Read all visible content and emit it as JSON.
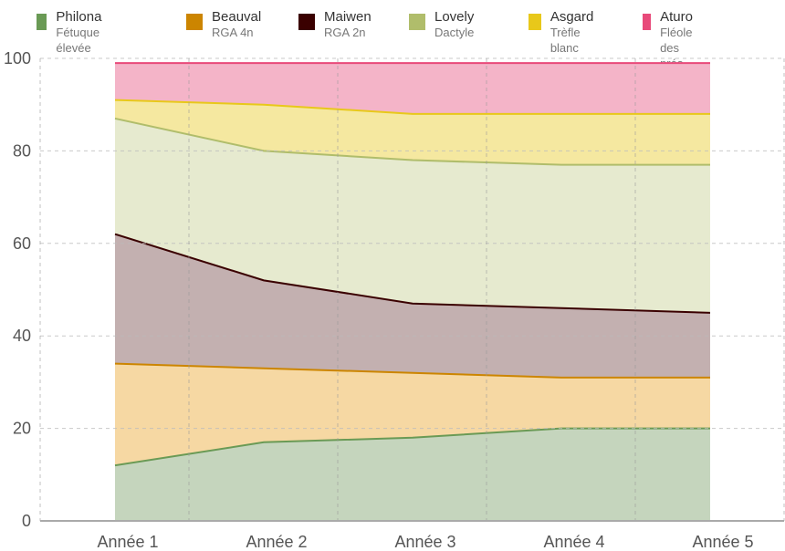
{
  "chart_data": {
    "type": "area",
    "stacked": true,
    "categories": [
      "Année 1",
      "Année 2",
      "Année 3",
      "Année 4",
      "Année 5"
    ],
    "series": [
      {
        "name": "Philona",
        "subtitle": "Fétuque élevée",
        "color": "#6a9a55",
        "fill": "#c5d5bd",
        "values": [
          12,
          17,
          18,
          20,
          20
        ]
      },
      {
        "name": "Beauval",
        "subtitle": "RGA 4n",
        "color": "#cc8500",
        "fill": "#f6d8a3",
        "values": [
          22,
          16,
          14,
          11,
          11
        ]
      },
      {
        "name": "Maiwen",
        "subtitle": "RGA 2n",
        "color": "#3a0000",
        "fill": "#c3b0b0",
        "values": [
          28,
          19,
          15,
          15,
          14
        ]
      },
      {
        "name": "Lovely",
        "subtitle": "Dactyle",
        "color": "#b0bd6b",
        "fill": "#e6eacf",
        "values": [
          25,
          28,
          31,
          31,
          32
        ]
      },
      {
        "name": "Asgard",
        "subtitle": "Trèfle blanc",
        "color": "#e8c81a",
        "fill": "#f5e8a0",
        "values": [
          4,
          10,
          10,
          11,
          11
        ]
      },
      {
        "name": "Aturo",
        "subtitle": "Fléole des prés",
        "color": "#e84a7a",
        "fill": "#f4b4c8",
        "values": [
          8,
          9,
          11,
          11,
          11
        ]
      }
    ],
    "yticks": [
      0,
      20,
      40,
      60,
      80,
      100
    ],
    "ylim": [
      0,
      100
    ],
    "grid": true,
    "legend": "top"
  }
}
